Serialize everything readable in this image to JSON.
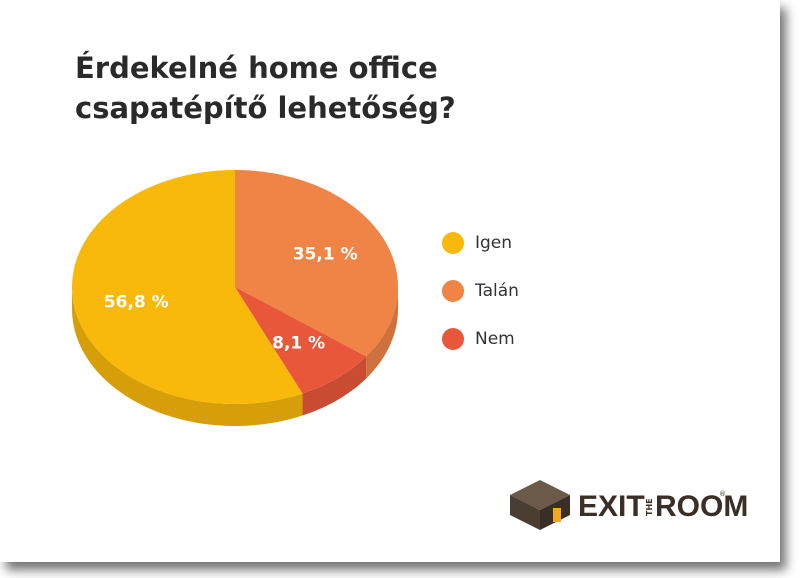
{
  "chart_data": {
    "type": "pie",
    "title": "Érdekelné home office csapatépítő lehetőség?",
    "categories": [
      "Igen",
      "Talán",
      "Nem"
    ],
    "values": [
      56.8,
      35.1,
      8.1
    ],
    "value_labels": [
      "56,8 %",
      "35,1 %",
      "8,1 %"
    ],
    "colors": [
      "#f9b90b",
      "#f08447",
      "#e8573a"
    ],
    "legend": "right"
  },
  "logo": {
    "exit": "EXIT",
    "the": "THE",
    "room": "ROOM",
    "mark": "®"
  }
}
